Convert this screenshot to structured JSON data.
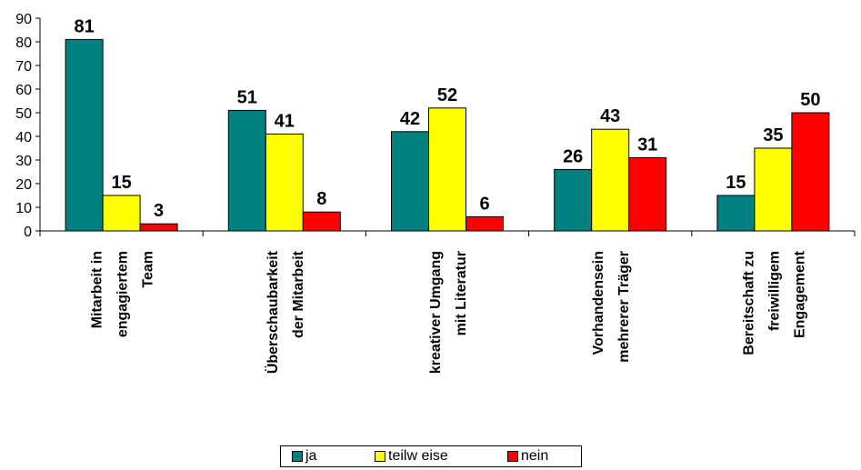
{
  "chart_data": {
    "type": "bar",
    "categories": [
      [
        "Mitarbeit in",
        "engagiertem",
        "Team"
      ],
      [
        "Überschaubarkeit",
        "der Mitarbeit"
      ],
      [
        "kreativer Umgang",
        "mit Literatur"
      ],
      [
        "Vorhandensein",
        "mehrerer Träger"
      ],
      [
        "Bereitschaft zu",
        "freiwilligem",
        "Engagement"
      ]
    ],
    "series": [
      {
        "name": "ja",
        "color": "#00807F",
        "values": [
          81,
          51,
          42,
          26,
          15
        ]
      },
      {
        "name": "teilw eise",
        "color": "#FFFF00",
        "values": [
          15,
          41,
          52,
          43,
          35
        ]
      },
      {
        "name": "nein",
        "color": "#FF0000",
        "values": [
          3,
          8,
          6,
          31,
          50
        ]
      }
    ],
    "ylim": [
      0,
      90
    ],
    "yticks": [
      0,
      10,
      20,
      30,
      40,
      50,
      60,
      70,
      80,
      90
    ],
    "grid": false,
    "legend": "bottom"
  }
}
